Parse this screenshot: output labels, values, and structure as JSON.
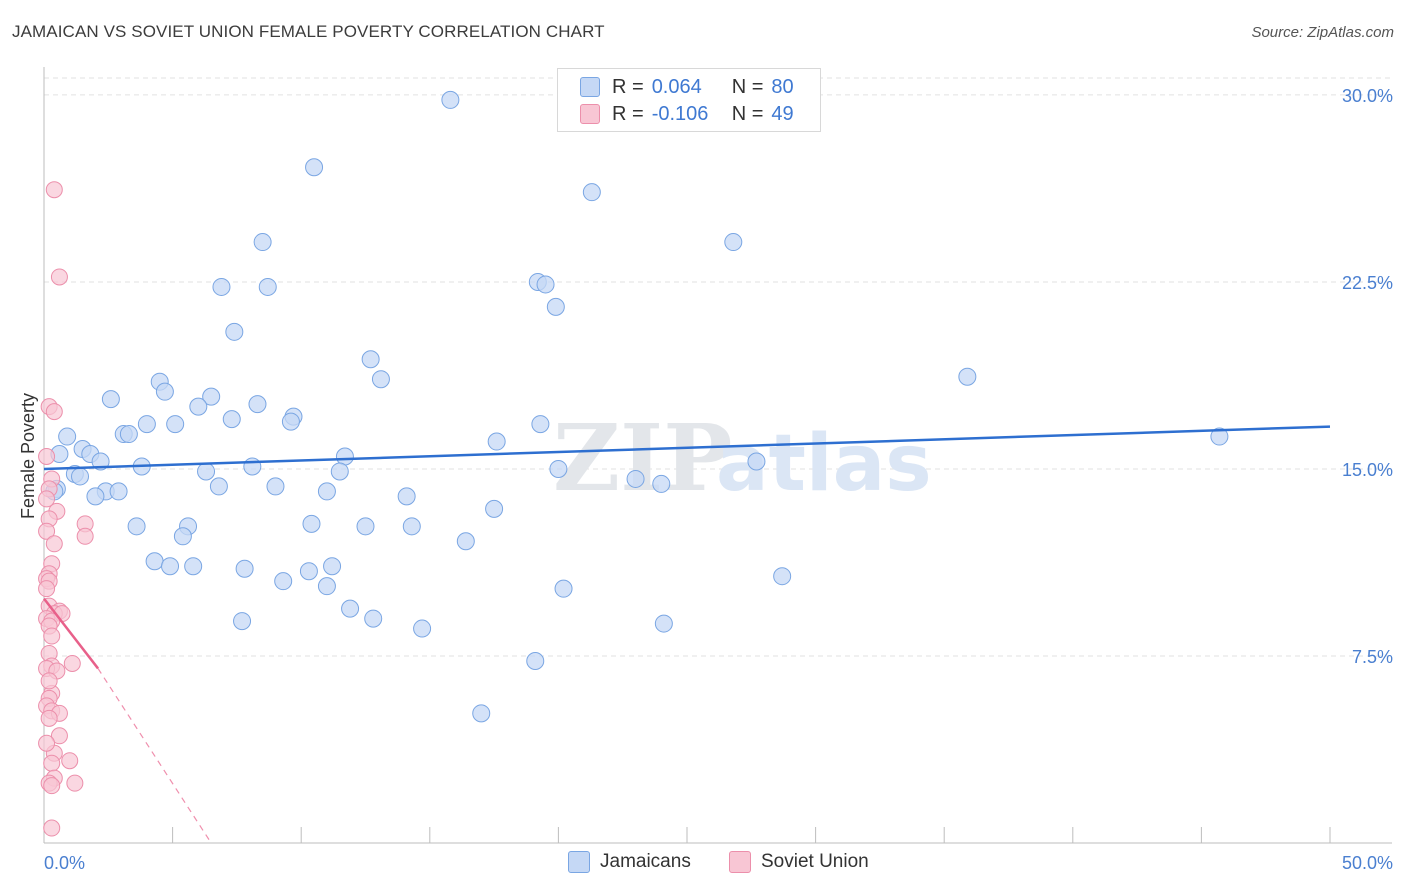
{
  "title": "JAMAICAN VS SOVIET UNION FEMALE POVERTY CORRELATION CHART",
  "source": "Source: ZipAtlas.com",
  "watermark": {
    "zip": "ZIP",
    "atlas": "atlas"
  },
  "colors": {
    "blue_fill": "#c5d8f5",
    "blue_stroke": "#7aa6e3",
    "blue_line": "#2e6fd0",
    "pink_fill": "#f8c6d4",
    "pink_stroke": "#ec8fab",
    "pink_line": "#e8608a",
    "axis_text": "#4a7fd0",
    "grid": "#e2e2e2"
  },
  "legend": {
    "r_label": "R =",
    "n_label": "N =",
    "rows": [
      {
        "series": "Jamaicans",
        "r": "0.064",
        "n": "80"
      },
      {
        "series": "Soviet Union",
        "r": "-0.106",
        "n": "49"
      }
    ]
  },
  "bottom_legend": [
    "Jamaicans",
    "Soviet Union"
  ],
  "chart_data": {
    "type": "scatter",
    "title": "JAMAICAN VS SOVIET UNION FEMALE POVERTY CORRELATION CHART",
    "xlabel": "",
    "ylabel": "Female Poverty",
    "xlim": [
      0,
      50
    ],
    "ylim": [
      0,
      31
    ],
    "x_tick_labels": [
      "0.0%",
      "50.0%"
    ],
    "y_ticks": [
      7.5,
      15.0,
      22.5,
      30.0
    ],
    "y_tick_labels": [
      "7.5%",
      "15.0%",
      "22.5%",
      "30.0%"
    ],
    "grid": true,
    "series": [
      {
        "name": "Jamaicans",
        "points": [
          [
            15.8,
            29.8
          ],
          [
            10.5,
            27.1
          ],
          [
            21.3,
            26.1
          ],
          [
            8.5,
            24.1
          ],
          [
            26.8,
            24.1
          ],
          [
            6.9,
            22.3
          ],
          [
            8.7,
            22.3
          ],
          [
            19.2,
            22.5
          ],
          [
            19.5,
            22.4
          ],
          [
            19.9,
            21.5
          ],
          [
            7.4,
            20.5
          ],
          [
            12.7,
            19.4
          ],
          [
            13.1,
            18.6
          ],
          [
            35.9,
            18.7
          ],
          [
            4.5,
            18.5
          ],
          [
            4.7,
            18.1
          ],
          [
            2.6,
            17.8
          ],
          [
            6.5,
            17.9
          ],
          [
            6.0,
            17.5
          ],
          [
            8.3,
            17.6
          ],
          [
            9.7,
            17.1
          ],
          [
            7.3,
            17.0
          ],
          [
            4.0,
            16.8
          ],
          [
            5.1,
            16.8
          ],
          [
            9.6,
            16.9
          ],
          [
            19.3,
            16.8
          ],
          [
            3.1,
            16.4
          ],
          [
            3.3,
            16.4
          ],
          [
            0.9,
            16.3
          ],
          [
            45.7,
            16.3
          ],
          [
            17.6,
            16.1
          ],
          [
            1.5,
            15.8
          ],
          [
            1.8,
            15.6
          ],
          [
            0.6,
            15.6
          ],
          [
            11.7,
            15.5
          ],
          [
            27.7,
            15.3
          ],
          [
            2.2,
            15.3
          ],
          [
            3.8,
            15.1
          ],
          [
            8.1,
            15.1
          ],
          [
            20.0,
            15.0
          ],
          [
            6.3,
            14.9
          ],
          [
            11.5,
            14.9
          ],
          [
            1.2,
            14.8
          ],
          [
            1.4,
            14.7
          ],
          [
            23.0,
            14.6
          ],
          [
            24.0,
            14.4
          ],
          [
            6.8,
            14.3
          ],
          [
            9.0,
            14.3
          ],
          [
            0.5,
            14.2
          ],
          [
            2.4,
            14.1
          ],
          [
            2.9,
            14.1
          ],
          [
            11.0,
            14.1
          ],
          [
            2.0,
            13.9
          ],
          [
            14.1,
            13.9
          ],
          [
            17.5,
            13.4
          ],
          [
            10.4,
            12.8
          ],
          [
            12.5,
            12.7
          ],
          [
            3.6,
            12.7
          ],
          [
            5.6,
            12.7
          ],
          [
            14.3,
            12.7
          ],
          [
            5.4,
            12.3
          ],
          [
            16.4,
            12.1
          ],
          [
            4.3,
            11.3
          ],
          [
            4.9,
            11.1
          ],
          [
            5.8,
            11.1
          ],
          [
            11.2,
            11.1
          ],
          [
            7.8,
            11.0
          ],
          [
            10.3,
            10.9
          ],
          [
            28.7,
            10.7
          ],
          [
            9.3,
            10.5
          ],
          [
            11.0,
            10.3
          ],
          [
            20.2,
            10.2
          ],
          [
            11.9,
            9.4
          ],
          [
            12.8,
            9.0
          ],
          [
            7.7,
            8.9
          ],
          [
            24.1,
            8.8
          ],
          [
            14.7,
            8.6
          ],
          [
            19.1,
            7.3
          ],
          [
            17.0,
            5.2
          ],
          [
            0.4,
            14.1
          ]
        ],
        "trend": {
          "x": [
            0,
            50
          ],
          "y": [
            15.0,
            16.7
          ]
        }
      },
      {
        "name": "Soviet Union",
        "points": [
          [
            0.4,
            26.2
          ],
          [
            0.6,
            22.7
          ],
          [
            0.2,
            17.5
          ],
          [
            0.4,
            17.3
          ],
          [
            0.1,
            15.5
          ],
          [
            0.3,
            14.6
          ],
          [
            0.2,
            14.2
          ],
          [
            0.1,
            13.8
          ],
          [
            0.5,
            13.3
          ],
          [
            0.2,
            13.0
          ],
          [
            1.6,
            12.8
          ],
          [
            0.1,
            12.5
          ],
          [
            1.6,
            12.3
          ],
          [
            0.4,
            12.0
          ],
          [
            0.3,
            11.2
          ],
          [
            0.2,
            10.8
          ],
          [
            0.1,
            10.6
          ],
          [
            0.2,
            10.5
          ],
          [
            0.1,
            10.2
          ],
          [
            0.2,
            9.5
          ],
          [
            0.6,
            9.3
          ],
          [
            0.4,
            9.2
          ],
          [
            0.7,
            9.2
          ],
          [
            0.1,
            9.0
          ],
          [
            0.3,
            8.9
          ],
          [
            0.2,
            8.7
          ],
          [
            0.3,
            8.3
          ],
          [
            0.2,
            7.6
          ],
          [
            0.3,
            7.1
          ],
          [
            1.1,
            7.2
          ],
          [
            0.1,
            7.0
          ],
          [
            0.5,
            6.9
          ],
          [
            0.3,
            6.0
          ],
          [
            0.2,
            5.8
          ],
          [
            0.1,
            5.5
          ],
          [
            0.3,
            5.3
          ],
          [
            0.6,
            5.2
          ],
          [
            0.2,
            5.0
          ],
          [
            0.6,
            4.3
          ],
          [
            0.4,
            3.6
          ],
          [
            0.3,
            3.2
          ],
          [
            1.0,
            3.3
          ],
          [
            0.4,
            2.6
          ],
          [
            0.2,
            2.4
          ],
          [
            0.3,
            2.3
          ],
          [
            1.2,
            2.4
          ],
          [
            0.3,
            0.6
          ],
          [
            0.1,
            4.0
          ],
          [
            0.2,
            6.5
          ]
        ],
        "trend": {
          "x": [
            0,
            2.1
          ],
          "y": [
            9.8,
            7.0
          ]
        },
        "trend_extension": {
          "x": [
            2.1,
            6.5
          ],
          "y": [
            7.0,
            0.0
          ]
        }
      }
    ]
  }
}
